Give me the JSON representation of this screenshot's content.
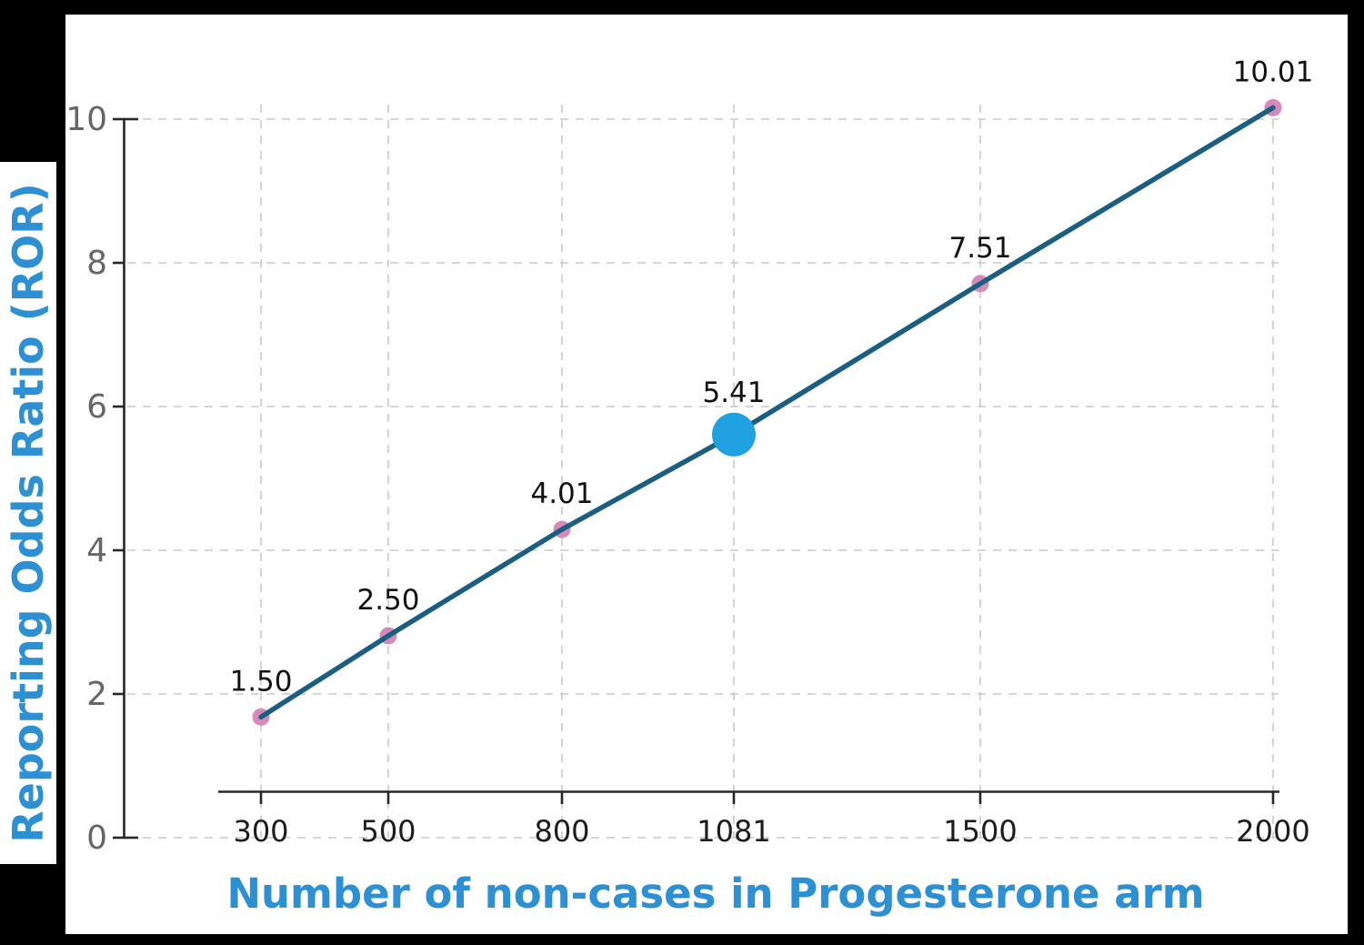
{
  "chart_data": {
    "type": "line",
    "title": "",
    "xlabel": "Number of non-cases in Progesterone arm",
    "ylabel": "Reporting Odds Ratio (ROR)",
    "x_ticks": [
      "300",
      "500",
      "800",
      "1081",
      "1500",
      "2000"
    ],
    "y_ticks": [
      "0",
      "2",
      "4",
      "6",
      "8",
      "10"
    ],
    "xlim": [
      210,
      2110
    ],
    "ylim": [
      0,
      10.5
    ],
    "grid": "dashed horizontal and vertical at every tick",
    "legend_position": "none",
    "points": [
      {
        "x": 300,
        "ror": 1.5,
        "ror_label": "1.50",
        "plot_y": 1.68,
        "highlighted": false
      },
      {
        "x": 500,
        "ror": 2.5,
        "ror_label": "2.50",
        "plot_y": 2.81,
        "highlighted": false
      },
      {
        "x": 800,
        "ror": 4.01,
        "ror_label": "4.01",
        "plot_y": 4.29,
        "highlighted": false
      },
      {
        "x": 1081,
        "ror": 5.41,
        "ror_label": "5.41",
        "plot_y": 5.61,
        "highlighted": true
      },
      {
        "x": 1500,
        "ror": 7.51,
        "ror_label": "7.51",
        "plot_y": 7.71,
        "highlighted": false
      },
      {
        "x": 2000,
        "ror": 10.01,
        "ror_label": "10.01",
        "plot_y": 10.16,
        "highlighted": false
      }
    ],
    "colors": {
      "background": "#000000",
      "figure": "#ffffff",
      "line": "#1a5e82",
      "marker": "#d689ba",
      "highlight_marker": "#20a2e2",
      "axis_label_text": "#2d90d3",
      "axis": "#262626",
      "grid": "#c9c9c9",
      "y_tick_text": "#666666",
      "x_tick_text": "#1c1c1c",
      "point_label_text": "#121212"
    }
  }
}
